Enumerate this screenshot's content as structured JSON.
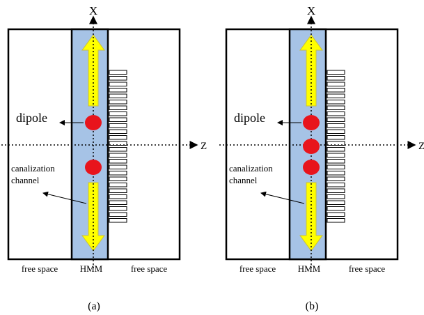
{
  "panels": [
    {
      "caption": "(a)",
      "x_axis": "X",
      "z_axis": "Z",
      "dipole_label": "dipole",
      "channel_label": [
        "canalization",
        "channel"
      ],
      "bottom_labels": [
        "free space",
        "HMM",
        "free space"
      ]
    },
    {
      "caption": "(b)",
      "x_axis": "X",
      "z_axis": "Z",
      "dipole_label": "dipole",
      "channel_label": [
        "canalization",
        "channel"
      ],
      "bottom_labels": [
        "free space",
        "HMM",
        "free space"
      ]
    }
  ]
}
